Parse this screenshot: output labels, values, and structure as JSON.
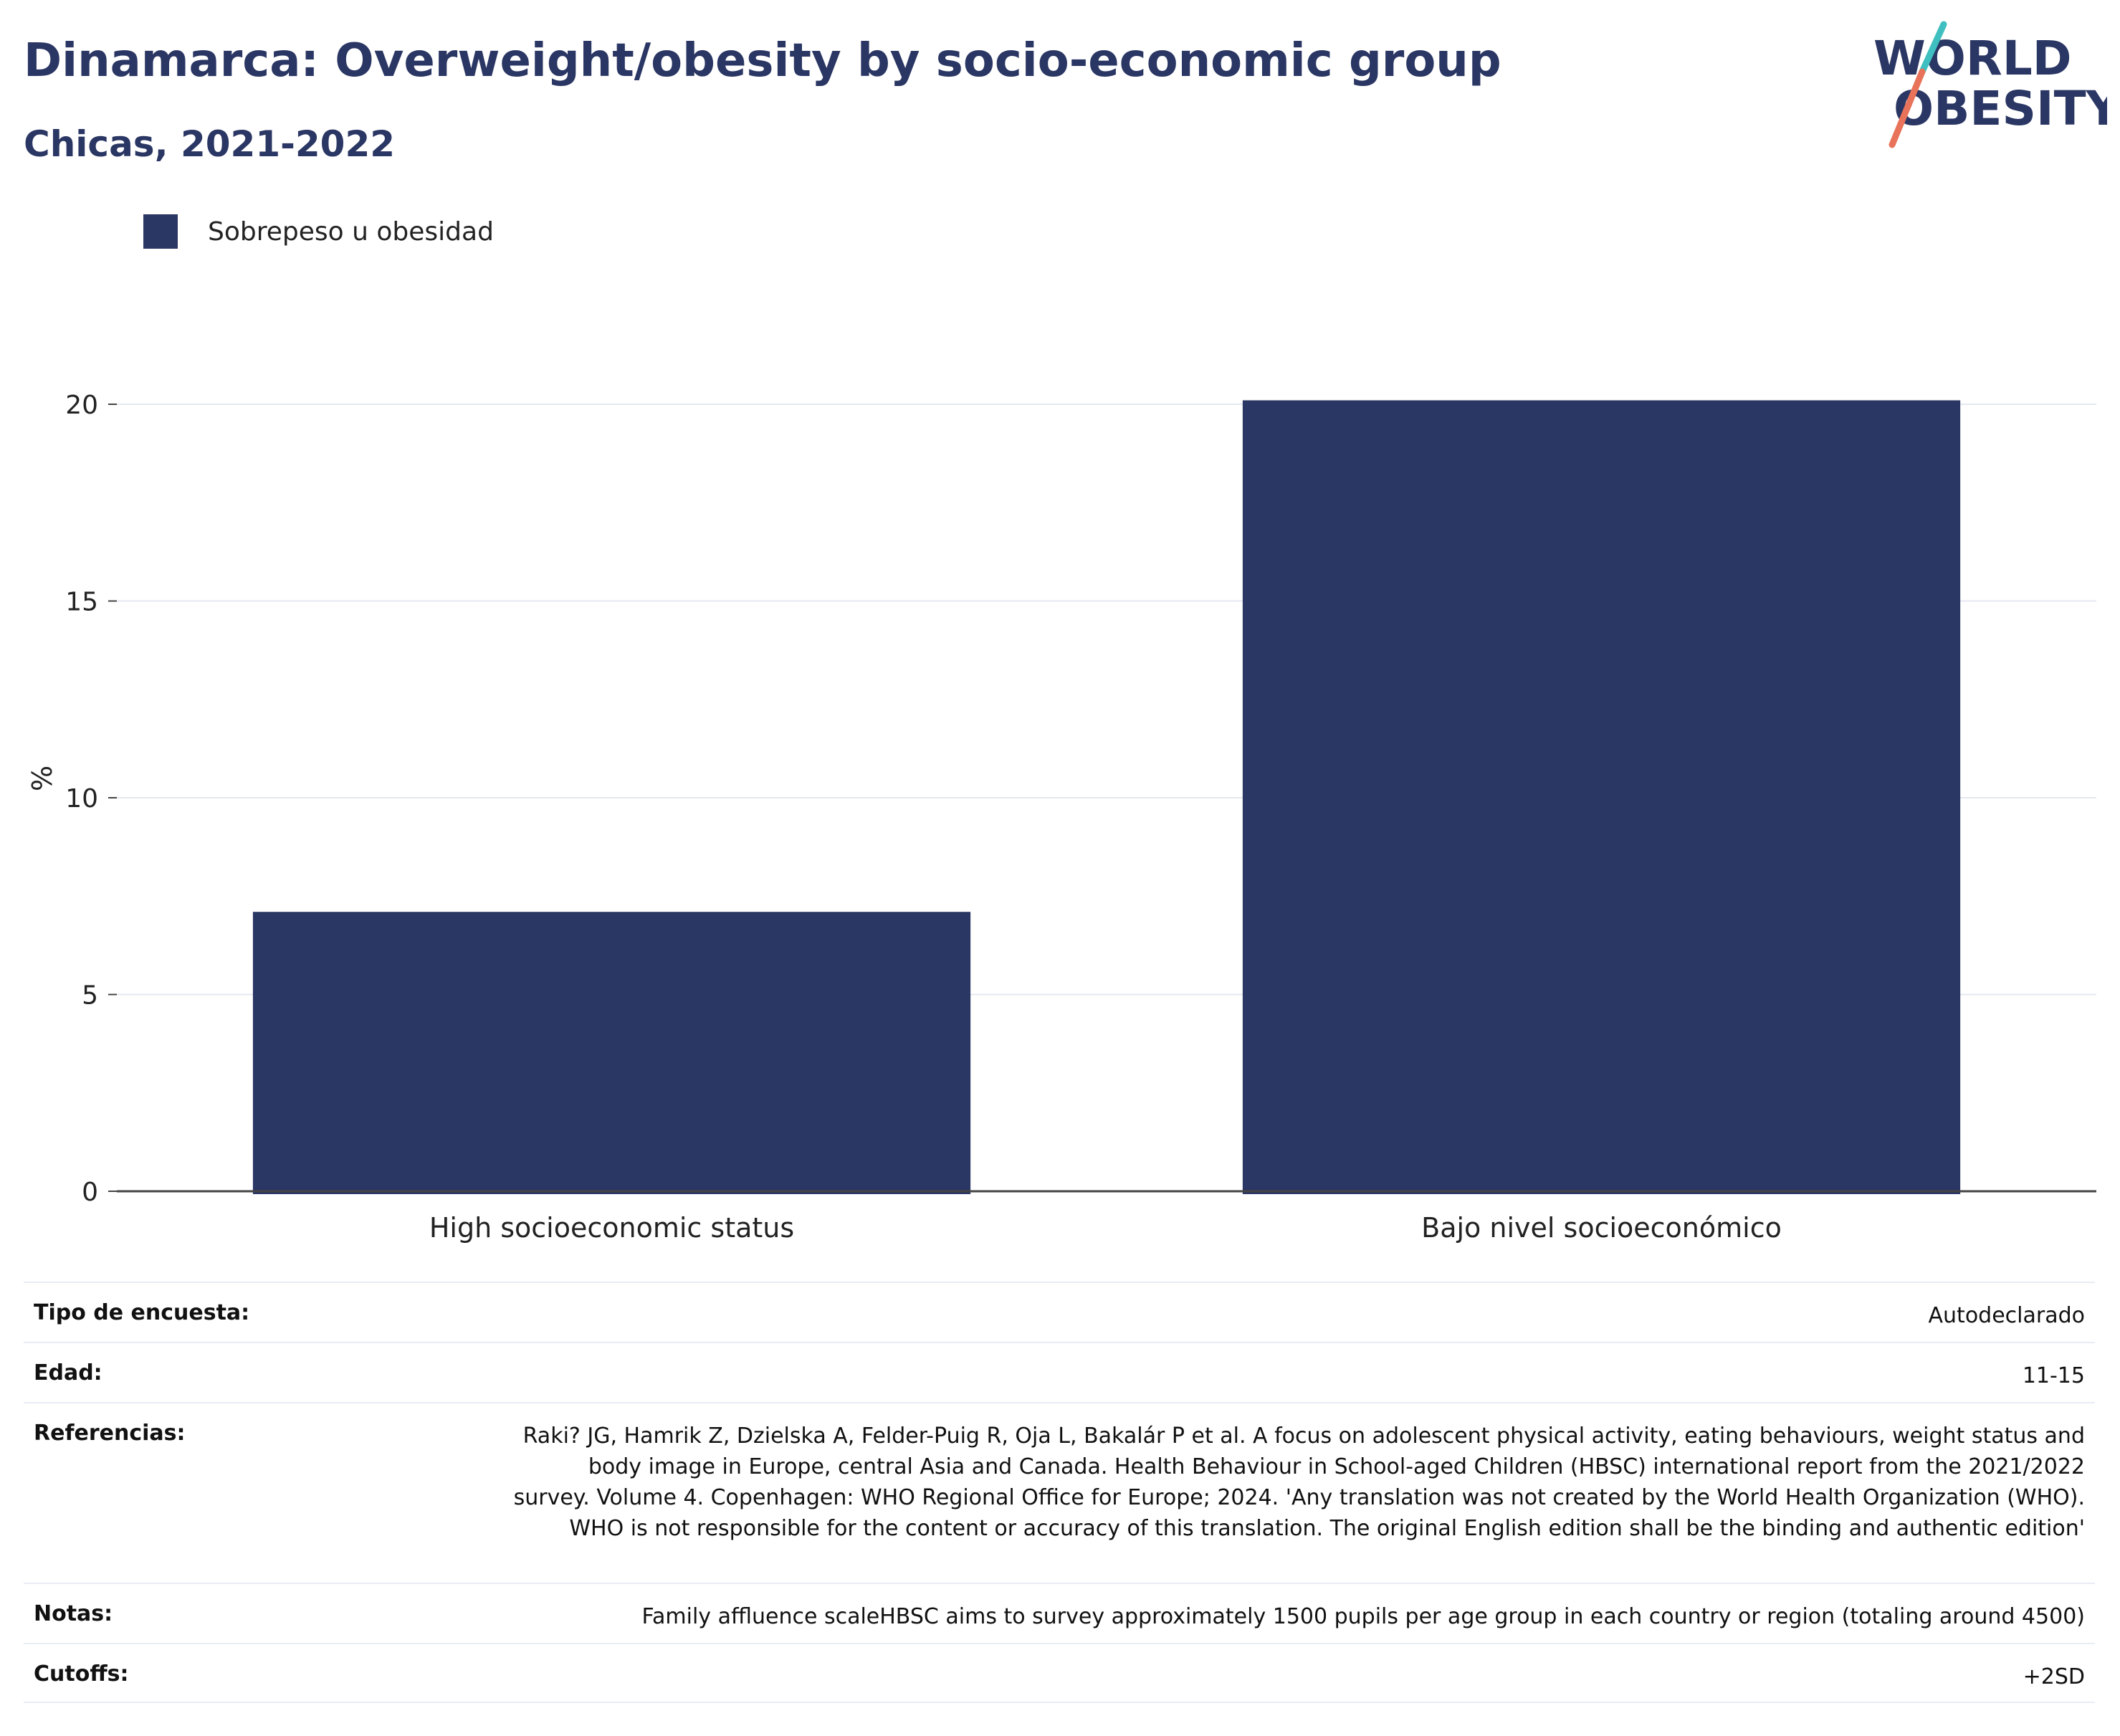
{
  "header": {
    "title": "Dinamarca: Overweight/obesity by socio-economic group",
    "subtitle": "Chicas, 2021-2022"
  },
  "logo": {
    "line1": "WORLD",
    "line2": "OBESITY",
    "slash_color_top": "#3fbfbf",
    "slash_color_bottom": "#e8735a"
  },
  "legend": {
    "label": "Sobrepeso u obesidad",
    "color": "#2a3663"
  },
  "chart_data": {
    "type": "bar",
    "categories": [
      "High socioeconomic status",
      "Bajo nivel socioeconómico"
    ],
    "series": [
      {
        "name": "Sobrepeso u obesidad",
        "values": [
          7.1,
          20.1
        ],
        "color": "#2a3663"
      }
    ],
    "title": "Dinamarca: Overweight/obesity by socio-economic group",
    "subtitle": "Chicas, 2021-2022",
    "xlabel": "",
    "ylabel": "%",
    "ylim": [
      0,
      22
    ],
    "yticks": [
      0,
      5,
      10,
      15,
      20
    ],
    "grid": true,
    "legend_position": "top-left"
  },
  "meta": {
    "rows": [
      {
        "key": "Tipo de encuesta:",
        "value": "Autodeclarado"
      },
      {
        "key": "Edad:",
        "value": "11-15"
      },
      {
        "key": "Referencias:",
        "value": "Raki? JG, Hamrik Z, Dzielska A, Felder-Puig R, Oja L, Bakalár P et al. A focus on adolescent physical activity, eating behaviours, weight status and body image in Europe, central Asia and Canada. Health Behaviour in School-aged Children (HBSC) international report from the 2021/2022 survey. Volume 4. Copenhagen: WHO Regional Office for Europe; 2024. 'Any translation was not created by the World Health Organization (WHO). WHO is not responsible for the content or accuracy of this translation. The original English edition shall be the binding and authentic edition'"
      },
      {
        "key": "Notas:",
        "value": "Family affluence scaleHBSC aims to survey approximately 1500 pupils per age group in each country or region (totaling around 4500)"
      },
      {
        "key": "Cutoffs:",
        "value": "+2SD"
      }
    ]
  }
}
